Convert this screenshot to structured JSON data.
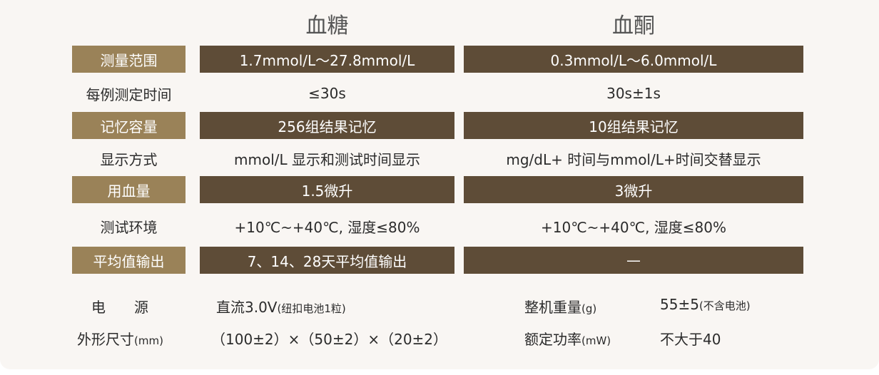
{
  "headers": {
    "glucose": "血糖",
    "ketone": "血酮"
  },
  "rows": [
    {
      "label": "测量范围",
      "glucose": "1.7mmol/L～27.8mmol/L",
      "ketone": "0.3mmol/L～6.0mmol/L",
      "highlight": true
    },
    {
      "label": "每例测定时间",
      "glucose": "≤30s",
      "ketone": "30s±1s",
      "highlight": false
    },
    {
      "label": "记忆容量",
      "glucose": "256组结果记忆",
      "ketone": "10组结果记忆",
      "highlight": true
    },
    {
      "label": "显示方式",
      "glucose": "mmol/L 显示和测试时间显示",
      "ketone": "mg/dL+ 时间与mmol/L+时间交替显示",
      "highlight": false
    },
    {
      "label": "用血量",
      "glucose": "1.5微升",
      "ketone": "3微升",
      "highlight": true
    },
    {
      "label": "测试环境",
      "glucose": "+10℃~+40℃, 湿度≤80%",
      "ketone": "+10℃~+40℃, 湿度≤80%",
      "highlight": false
    },
    {
      "label": "平均值输出",
      "glucose": "7、14、28天平均值输出",
      "ketone": "—",
      "highlight": true
    }
  ],
  "footer": {
    "power_label": "电　　源",
    "power_value": "直流3.0V",
    "power_note": "(纽扣电池1粒)",
    "size_label": "外形尺寸",
    "size_unit": "(mm)",
    "size_value": "（100±2）×（50±2）×（20±2）",
    "weight_label": "整机重量",
    "weight_unit": "(g)",
    "weight_value": "55±5",
    "weight_note": "(不含电池)",
    "rated_label": "额定功率",
    "rated_unit": "(mW)",
    "rated_value": "不大于40"
  },
  "colors": {
    "label_bg": "#9a8258",
    "value_bg": "#5e4c37",
    "background": "#f9f6f3"
  }
}
